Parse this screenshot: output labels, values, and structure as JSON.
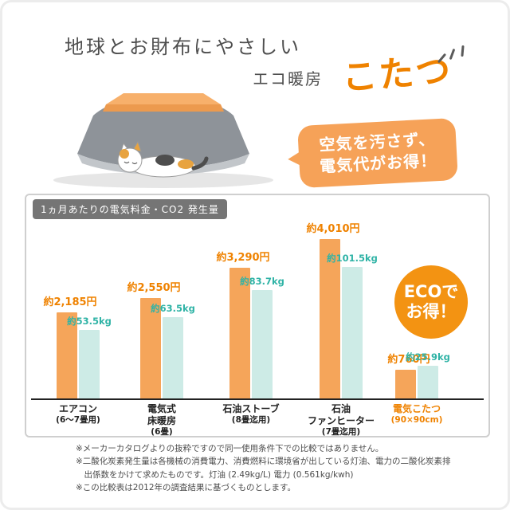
{
  "header": {
    "title": "地球とお財布にやさしい",
    "subtitle_prefix": "エコ暖房",
    "subtitle_main": "こたつ"
  },
  "speech_bubble": {
    "line1": "空気を汚さず、",
    "line2": "電気代がお得！"
  },
  "eco_badge": {
    "line1": "ECOで",
    "line2": "お得！"
  },
  "illustration": {
    "description": "kotatsu-with-sleeping-calico-cat"
  },
  "chart_data": {
    "type": "bar",
    "title": "1ヵ月あたりの電気料金・CO2 発生量",
    "categories": [
      {
        "lines": [
          "エアコン",
          "(6〜7畳用)"
        ],
        "highlight": false
      },
      {
        "lines": [
          "電気式",
          "床暖房",
          "(6畳)"
        ],
        "highlight": false
      },
      {
        "lines": [
          "石油ストーブ",
          "(8畳迄用)"
        ],
        "highlight": false
      },
      {
        "lines": [
          "石油",
          "ファンヒーター",
          "(7畳迄用)"
        ],
        "highlight": false
      },
      {
        "lines": [
          "電気こたつ",
          "(90×90cm)"
        ],
        "highlight": true
      }
    ],
    "series": [
      {
        "name": "電気料金",
        "unit": "円",
        "color": "#f5a55a",
        "label_color": "#ef8200",
        "values": [
          2185,
          2550,
          3290,
          4010,
          760
        ],
        "labels": [
          "約2,185円",
          "約2,550円",
          "約3,290円",
          "約4,010円",
          "約760円"
        ]
      },
      {
        "name": "CO2発生量",
        "unit": "kg",
        "color": "#cdebe6",
        "label_color": "#2fb3a6",
        "values": [
          53.5,
          63.5,
          83.7,
          101.5,
          25.9
        ],
        "labels": [
          "約53.5kg",
          "約63.5kg",
          "約83.7kg",
          "約101.5kg",
          "約25.9kg"
        ]
      }
    ],
    "ylim": [
      0,
      4010
    ],
    "grid": false,
    "legend": "none"
  },
  "footnotes": [
    "※メーカーカタログよりの抜粋ですので同一使用条件下での比較ではありません。",
    "※二酸化炭素発生量は各機械の消費電力、消費燃料に環境省が出している灯油、電力の二酸化炭素排出係数をかけて求めたものです。灯油 (2.49kg/L) 電力 (0.561kg/kwh)",
    "※この比較表は2012年の調査結果に基づくものとします。"
  ],
  "colors": {
    "accent_orange": "#ef8200",
    "bar_orange": "#f5a55a",
    "bar_teal": "#cdebe6",
    "teal_text": "#2fb3a6",
    "bubble_orange": "#f6a258",
    "badge_orange": "#f39312"
  }
}
